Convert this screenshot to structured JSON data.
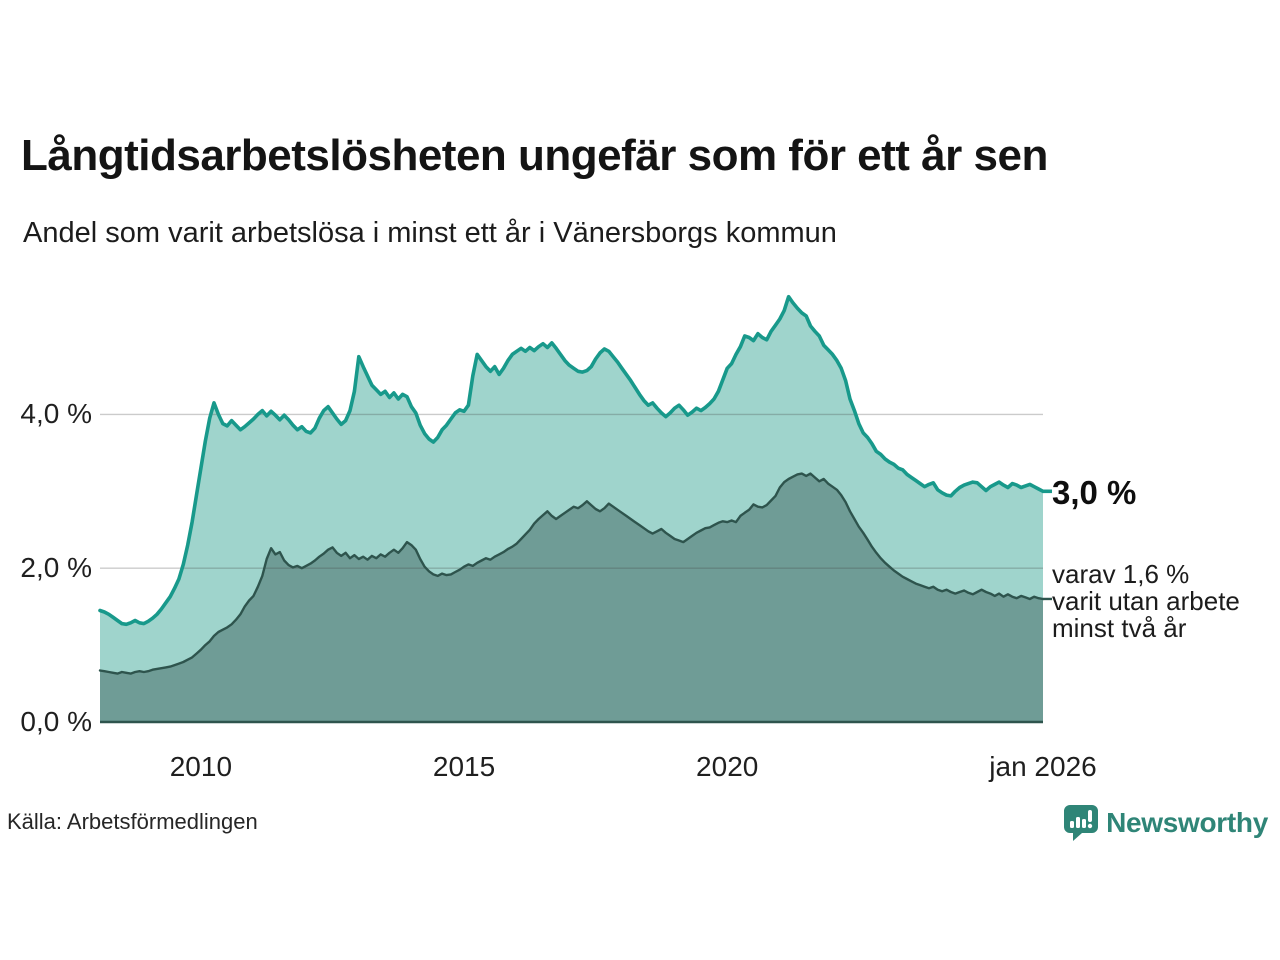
{
  "header": {
    "title": "Långtidsarbetslösheten ungefär som för ett år sen",
    "subtitle": "Andel som varit arbetslösa i minst ett år i Vänersborgs kommun"
  },
  "annotations": {
    "latest_total": "3,0 %",
    "secondary_lines": [
      "varav 1,6 %",
      "varit utan arbete",
      "minst två år"
    ]
  },
  "footer": {
    "source": "Källa: Arbetsförmedlingen",
    "logo_text": "Newsworthy"
  },
  "colors": {
    "area_total": "#9fd4cc",
    "area_two_year": "#6f9c96",
    "line_total": "#18998b",
    "line_two_year": "#2e544d",
    "baseline": "#2e544d",
    "gridline": "rgba(70,70,70,0.28)",
    "logo_teal": "#2f8577",
    "text_dark": "#141414"
  },
  "chart_data": {
    "type": "area",
    "title": "Långtidsarbetslösheten ungefär som för ett år sen",
    "subtitle": "Andel som varit arbetslösa i minst ett år i Vänersborgs kommun",
    "unit": "%",
    "frequency": "monthly",
    "x_start_year": 2008.083,
    "x_end_year": 2026.0,
    "ylim": [
      0,
      5.8
    ],
    "grid": true,
    "y_ticks": [
      {
        "label": "0,0 %",
        "value": 0.0
      },
      {
        "label": "2,0 %",
        "value": 2.0
      },
      {
        "label": "4,0 %",
        "value": 4.0
      }
    ],
    "x_ticks": [
      {
        "label": "2010",
        "year": 2010.0
      },
      {
        "label": "2015",
        "year": 2015.0
      },
      {
        "label": "2020",
        "year": 2020.0
      },
      {
        "label": "jan 2026",
        "year": 2026.0
      }
    ],
    "series": [
      {
        "name": "arbetslösa minst ett år",
        "end_label": "3,0 %",
        "values": [
          1.45,
          1.43,
          1.4,
          1.36,
          1.32,
          1.28,
          1.27,
          1.29,
          1.32,
          1.29,
          1.28,
          1.31,
          1.35,
          1.4,
          1.47,
          1.55,
          1.63,
          1.74,
          1.86,
          2.05,
          2.3,
          2.6,
          2.95,
          3.3,
          3.65,
          3.95,
          4.15,
          4.0,
          3.88,
          3.85,
          3.92,
          3.86,
          3.8,
          3.84,
          3.89,
          3.94,
          4.0,
          4.05,
          3.98,
          4.04,
          3.99,
          3.93,
          3.99,
          3.93,
          3.86,
          3.8,
          3.84,
          3.78,
          3.76,
          3.82,
          3.95,
          4.05,
          4.1,
          4.02,
          3.94,
          3.87,
          3.92,
          4.05,
          4.3,
          4.75,
          4.62,
          4.5,
          4.38,
          4.32,
          4.26,
          4.3,
          4.22,
          4.28,
          4.2,
          4.26,
          4.23,
          4.1,
          4.02,
          3.86,
          3.75,
          3.68,
          3.64,
          3.7,
          3.8,
          3.86,
          3.94,
          4.02,
          4.06,
          4.04,
          4.12,
          4.5,
          4.78,
          4.7,
          4.62,
          4.56,
          4.62,
          4.52,
          4.6,
          4.7,
          4.78,
          4.82,
          4.86,
          4.82,
          4.87,
          4.83,
          4.88,
          4.92,
          4.87,
          4.93,
          4.86,
          4.78,
          4.7,
          4.64,
          4.6,
          4.56,
          4.55,
          4.57,
          4.62,
          4.72,
          4.8,
          4.85,
          4.82,
          4.75,
          4.68,
          4.6,
          4.52,
          4.44,
          4.35,
          4.26,
          4.18,
          4.12,
          4.15,
          4.08,
          4.02,
          3.97,
          4.02,
          4.08,
          4.12,
          4.06,
          3.99,
          4.03,
          4.08,
          4.05,
          4.09,
          4.14,
          4.2,
          4.3,
          4.45,
          4.6,
          4.66,
          4.78,
          4.88,
          5.02,
          5.0,
          4.96,
          5.05,
          5.0,
          4.97,
          5.08,
          5.16,
          5.24,
          5.35,
          5.53,
          5.45,
          5.38,
          5.32,
          5.28,
          5.15,
          5.08,
          5.02,
          4.9,
          4.84,
          4.78,
          4.7,
          4.6,
          4.44,
          4.2,
          4.05,
          3.88,
          3.76,
          3.7,
          3.62,
          3.52,
          3.48,
          3.42,
          3.38,
          3.35,
          3.3,
          3.28,
          3.22,
          3.18,
          3.14,
          3.1,
          3.06,
          3.09,
          3.11,
          3.02,
          2.98,
          2.95,
          2.94,
          3.0,
          3.05,
          3.08,
          3.1,
          3.12,
          3.11,
          3.06,
          3.01,
          3.06,
          3.09,
          3.12,
          3.08,
          3.05,
          3.1,
          3.08,
          3.05,
          3.07,
          3.09,
          3.06,
          3.03,
          3.0
        ]
      },
      {
        "name": "varav utan arbete minst två år",
        "end_label": "1,6 %",
        "values": [
          0.67,
          0.66,
          0.65,
          0.64,
          0.63,
          0.65,
          0.64,
          0.63,
          0.65,
          0.66,
          0.65,
          0.66,
          0.68,
          0.69,
          0.7,
          0.71,
          0.72,
          0.74,
          0.76,
          0.78,
          0.81,
          0.84,
          0.89,
          0.94,
          1.0,
          1.05,
          1.12,
          1.17,
          1.2,
          1.23,
          1.27,
          1.33,
          1.4,
          1.5,
          1.58,
          1.64,
          1.76,
          1.9,
          2.12,
          2.26,
          2.18,
          2.21,
          2.1,
          2.04,
          2.01,
          2.03,
          2.0,
          2.03,
          2.06,
          2.1,
          2.15,
          2.19,
          2.24,
          2.27,
          2.2,
          2.16,
          2.2,
          2.13,
          2.17,
          2.12,
          2.15,
          2.11,
          2.16,
          2.13,
          2.18,
          2.15,
          2.2,
          2.24,
          2.2,
          2.26,
          2.34,
          2.3,
          2.24,
          2.12,
          2.02,
          1.96,
          1.92,
          1.9,
          1.93,
          1.91,
          1.92,
          1.95,
          1.98,
          2.02,
          2.05,
          2.03,
          2.07,
          2.1,
          2.13,
          2.11,
          2.15,
          2.18,
          2.21,
          2.25,
          2.28,
          2.32,
          2.38,
          2.44,
          2.5,
          2.58,
          2.64,
          2.69,
          2.74,
          2.68,
          2.64,
          2.68,
          2.72,
          2.76,
          2.8,
          2.78,
          2.82,
          2.87,
          2.82,
          2.77,
          2.74,
          2.78,
          2.84,
          2.8,
          2.76,
          2.72,
          2.68,
          2.64,
          2.6,
          2.56,
          2.52,
          2.48,
          2.45,
          2.48,
          2.51,
          2.46,
          2.42,
          2.38,
          2.36,
          2.34,
          2.38,
          2.42,
          2.46,
          2.49,
          2.52,
          2.53,
          2.56,
          2.59,
          2.61,
          2.6,
          2.62,
          2.6,
          2.68,
          2.72,
          2.76,
          2.83,
          2.8,
          2.79,
          2.82,
          2.88,
          2.94,
          3.05,
          3.12,
          3.16,
          3.19,
          3.22,
          3.23,
          3.2,
          3.23,
          3.18,
          3.13,
          3.16,
          3.1,
          3.06,
          3.02,
          2.95,
          2.86,
          2.74,
          2.64,
          2.54,
          2.46,
          2.37,
          2.28,
          2.2,
          2.13,
          2.07,
          2.02,
          1.97,
          1.93,
          1.89,
          1.86,
          1.83,
          1.8,
          1.78,
          1.76,
          1.74,
          1.76,
          1.72,
          1.7,
          1.72,
          1.69,
          1.67,
          1.69,
          1.71,
          1.68,
          1.66,
          1.69,
          1.72,
          1.69,
          1.67,
          1.64,
          1.67,
          1.63,
          1.66,
          1.63,
          1.61,
          1.64,
          1.62,
          1.6,
          1.63,
          1.61,
          1.6
        ]
      }
    ]
  }
}
